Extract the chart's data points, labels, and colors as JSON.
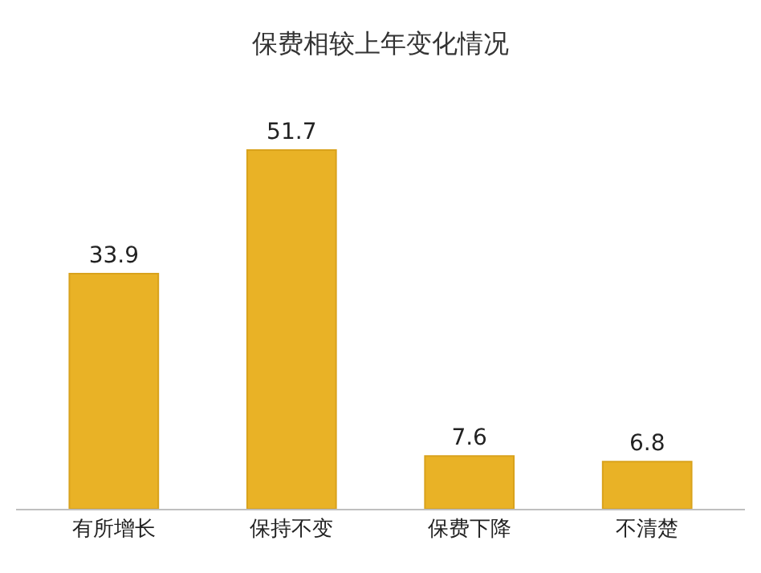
{
  "chart_data": {
    "type": "bar",
    "title": "保费相较上年变化情况",
    "categories": [
      "有所增长",
      "保持不变",
      "保费下降",
      "不清楚"
    ],
    "values": [
      33.9,
      51.7,
      7.6,
      6.8
    ],
    "color": "#e9b226",
    "data_labels": true
  }
}
